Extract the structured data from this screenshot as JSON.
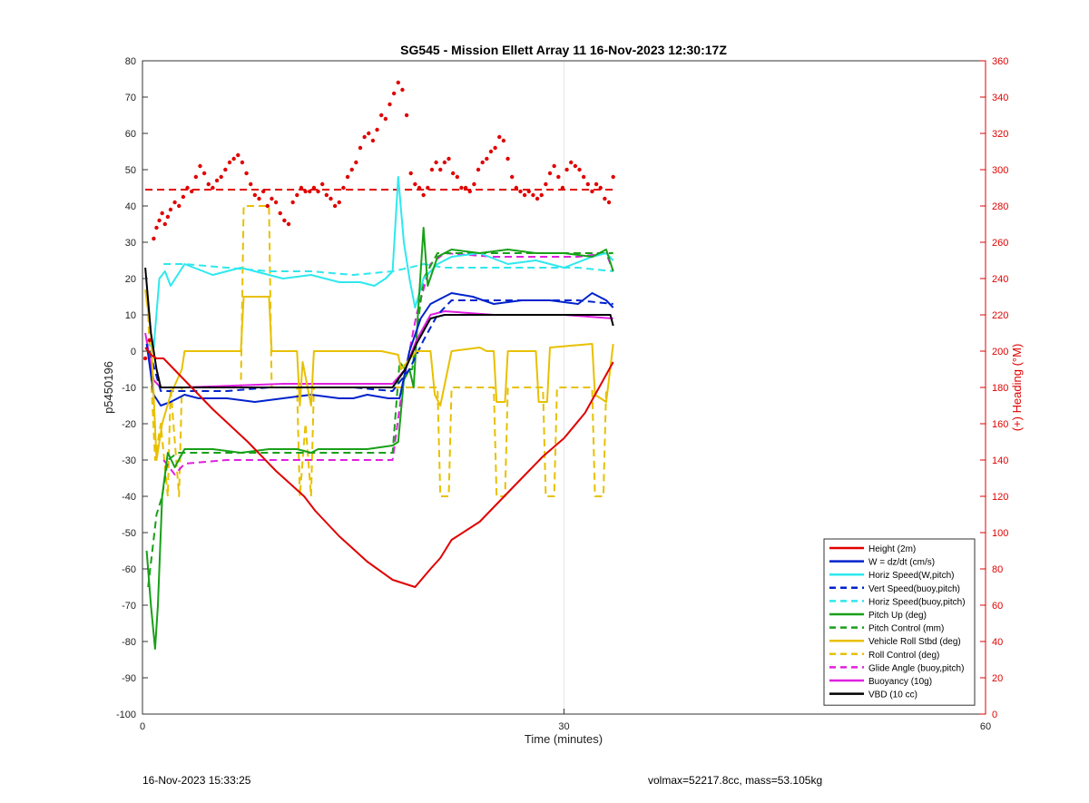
{
  "footer": {
    "left": "16-Nov-2023 15:33:25",
    "right": "volmax=52217.8cc, mass=53.105kg"
  },
  "chart_data": {
    "type": "line",
    "title": "SG545 - Mission Ellett Array 11 16-Nov-2023 12:30:17Z",
    "xlabel": "Time (minutes)",
    "ylabel": "p5450196",
    "y2label": "(+) Heading (°M)",
    "xlim": [
      0,
      60
    ],
    "ylim": [
      -100,
      80
    ],
    "y2lim": [
      0,
      360
    ],
    "xticks": [
      0,
      30,
      60
    ],
    "yticks": [
      -100,
      -90,
      -80,
      -70,
      -60,
      -50,
      -40,
      -30,
      -20,
      -10,
      0,
      10,
      20,
      30,
      40,
      50,
      60,
      70,
      80
    ],
    "y2ticks": [
      0,
      20,
      40,
      60,
      80,
      100,
      120,
      140,
      160,
      180,
      200,
      220,
      240,
      260,
      280,
      300,
      320,
      340,
      360
    ],
    "grid": "x-only at 30",
    "legend_position": "bottom-right",
    "colors": {
      "red": "#e00000",
      "blue": "#0022cc",
      "cyan": "#2ee8ee",
      "green": "#18a018",
      "yellow": "#e8c000",
      "magenta": "#e020e0",
      "black": "#000000"
    },
    "series": [
      {
        "name": "Height (2m)",
        "color": "#e00000",
        "style": "solid",
        "width": 2,
        "x": [
          0.2,
          0.6,
          1.0,
          1.5,
          3,
          5,
          7.5,
          9.5,
          11.5,
          12.3,
          14,
          16,
          17.8,
          19.4,
          20.5,
          21.2,
          22,
          24,
          25.5,
          27,
          28.5,
          30,
          31.5,
          32.5,
          33.5
        ],
        "y": [
          1,
          -1,
          -2,
          -2,
          -8,
          -16,
          -25,
          -33,
          -40,
          -44,
          -51,
          -58,
          -63,
          -65,
          -60,
          -57,
          -52,
          -47,
          -41,
          -35,
          -29,
          -24,
          -17,
          -10,
          -3
        ]
      },
      {
        "name": "W = dz/dt (cm/s)",
        "color": "#0022cc",
        "style": "solid",
        "width": 2,
        "x": [
          0.3,
          0.8,
          1.3,
          2,
          3,
          4,
          6,
          8,
          10,
          12,
          14,
          15,
          16,
          17.5,
          18.3,
          19,
          19.8,
          20.5,
          21,
          22,
          23.5,
          25,
          27,
          29,
          31,
          32,
          33,
          33.5
        ],
        "y": [
          2,
          -12,
          -15,
          -14,
          -12,
          -13,
          -13,
          -14,
          -13,
          -12,
          -13,
          -13,
          -12,
          -13,
          -13,
          0,
          9,
          13,
          14,
          16,
          15,
          13,
          14,
          14,
          13,
          16,
          14,
          12
        ]
      },
      {
        "name": "Horiz Speed(W,pitch)",
        "color": "#2ee8ee",
        "style": "solid",
        "width": 2,
        "x": [
          0.3,
          0.8,
          1.2,
          1.6,
          2,
          3,
          5,
          7,
          8,
          10,
          12,
          14,
          15.5,
          16.5,
          17.3,
          17.8,
          18.2,
          18.6,
          19,
          19.4,
          20,
          21,
          22,
          24,
          26,
          28,
          30,
          32,
          33,
          33.5
        ],
        "y": [
          2,
          1,
          20,
          22,
          18,
          24,
          21,
          23,
          22,
          20,
          21,
          19,
          19,
          18,
          20,
          22,
          48,
          30,
          20,
          12,
          20,
          24,
          26,
          27,
          24,
          25,
          23,
          26,
          27,
          25
        ]
      },
      {
        "name": "Vert Speed(buoy,pitch)",
        "color": "#0022cc",
        "style": "dashed",
        "width": 2,
        "x": [
          0.5,
          1.3,
          3,
          6,
          9,
          12,
          15,
          17.8,
          19,
          20,
          21,
          22,
          25,
          28,
          31,
          33.5
        ],
        "y": [
          0,
          -11,
          -11,
          -11,
          -10,
          -10,
          -10,
          -11,
          -5,
          3,
          10,
          14,
          14,
          14,
          14,
          13
        ]
      },
      {
        "name": "Horiz Speed(buoy,pitch)",
        "color": "#2ee8ee",
        "style": "dashed",
        "width": 2,
        "x": [
          1.5,
          3,
          6,
          9,
          12,
          15,
          17.8,
          19,
          20,
          21.5,
          25,
          28,
          31,
          33.5
        ],
        "y": [
          24,
          24,
          23,
          22,
          22,
          21,
          22,
          23,
          24,
          23,
          23,
          23,
          23,
          22
        ]
      },
      {
        "name": "Pitch Up (deg)",
        "color": "#18a018",
        "style": "solid",
        "width": 2,
        "x": [
          0.3,
          0.6,
          0.9,
          1.1,
          1.4,
          1.8,
          2.3,
          3,
          5,
          7,
          9,
          11,
          12,
          12.5,
          14,
          16,
          17.8,
          18.2,
          18.6,
          19,
          19.3,
          19.6,
          20,
          20.3,
          21,
          22,
          24,
          26,
          28,
          30,
          32,
          33,
          33.5
        ],
        "y": [
          -55,
          -70,
          -82,
          -70,
          -40,
          -28,
          -32,
          -27,
          -27,
          -28,
          -27,
          -27,
          -28,
          -27,
          -27,
          -27,
          -26,
          -25,
          -8,
          -5,
          -10,
          10,
          34,
          18,
          26,
          28,
          27,
          28,
          27,
          27,
          26,
          28,
          22
        ]
      },
      {
        "name": "Pitch Control (mm)",
        "color": "#18a018",
        "style": "dashed",
        "width": 2,
        "x": [
          0.4,
          1.0,
          1.4,
          1.8,
          2.5,
          5,
          10,
          15,
          17.8,
          18.3,
          18.7,
          19.2,
          20,
          21,
          25,
          30,
          33.5
        ],
        "y": [
          -65,
          -45,
          -40,
          -30,
          -28,
          -28,
          -28,
          -28,
          -28,
          -3,
          -5,
          -5,
          20,
          27,
          27,
          27,
          27
        ]
      },
      {
        "name": "Vehicle Roll Stbd (deg)",
        "color": "#e8c000",
        "style": "solid",
        "width": 2,
        "x": [
          0.2,
          0.6,
          1.0,
          1.4,
          2.0,
          2.8,
          3,
          7,
          7.2,
          9,
          9.2,
          11,
          11.2,
          11.4,
          12,
          12.2,
          17,
          18.2,
          18.4,
          19.5,
          20.5,
          20.8,
          21.2,
          22,
          24,
          24.5,
          25,
          25.2,
          25.8,
          26,
          28,
          28.2,
          28.8,
          29,
          32,
          32.2,
          33,
          33.5
        ],
        "y": [
          17,
          5,
          -30,
          -20,
          -12,
          -5,
          0,
          0,
          15,
          15,
          0,
          0,
          -15,
          -3,
          -15,
          0,
          0,
          -1,
          -5,
          0,
          0,
          -12,
          -15,
          0,
          1,
          0,
          0,
          -14,
          -14,
          0,
          0,
          -14,
          -14,
          1,
          2,
          -12,
          -14,
          2
        ]
      },
      {
        "name": "Roll Control (deg)",
        "color": "#e8c000",
        "style": "dashed",
        "width": 2,
        "x": [
          0.4,
          0.9,
          1.3,
          1.8,
          2.0,
          2.6,
          2.8,
          7,
          7.2,
          9,
          9.2,
          11,
          11.2,
          11.6,
          12,
          12.2,
          21,
          21.2,
          21.8,
          22,
          25,
          25.2,
          25.8,
          26,
          28.5,
          28.7,
          29.3,
          29.5,
          32,
          32.2,
          32.8,
          33
        ],
        "y": [
          10,
          -30,
          -20,
          -40,
          -10,
          -40,
          -10,
          -10,
          40,
          40,
          -10,
          -10,
          -40,
          -20,
          -40,
          -10,
          -10,
          -40,
          -40,
          -10,
          -10,
          -40,
          -40,
          -10,
          -10,
          -40,
          -40,
          -10,
          -10,
          -40,
          -40,
          -10
        ]
      },
      {
        "name": "Glide Angle (buoy,pitch)",
        "color": "#e020e0",
        "style": "dashed",
        "width": 2,
        "x": [
          1.5,
          2.3,
          3,
          6,
          9,
          12,
          15,
          17.8,
          18.5,
          19.5,
          20.5,
          21.5,
          25,
          28,
          31,
          33,
          33.5
        ],
        "y": [
          -30,
          -34,
          -31,
          -30,
          -30,
          -30,
          -30,
          -30,
          -10,
          10,
          24,
          27,
          26,
          26,
          26,
          27,
          22
        ]
      },
      {
        "name": "Buoyancy (10g)",
        "color": "#e020e0",
        "style": "solid",
        "width": 2,
        "x": [
          0.2,
          0.8,
          1.3,
          3,
          10,
          17.8,
          18.7,
          19.5,
          20.5,
          21.5,
          25,
          30,
          33.5
        ],
        "y": [
          5,
          -8,
          -10,
          -10,
          -9,
          -9,
          -5,
          3,
          10,
          11,
          10,
          10,
          9
        ]
      },
      {
        "name": "VBD (10 cc)",
        "color": "#000000",
        "style": "solid",
        "width": 2,
        "x": [
          0.2,
          0.6,
          1.0,
          1.3,
          3,
          10,
          17.8,
          18.7,
          19.5,
          20.5,
          21.5,
          25,
          30,
          33.3,
          33.5
        ],
        "y": [
          23,
          5,
          -5,
          -10,
          -10,
          -10,
          -10,
          -5,
          2,
          9,
          10,
          10,
          10,
          10,
          7
        ]
      },
      {
        "name": "",
        "axis": "right",
        "type": "line",
        "color": "#e00000",
        "style": "dashed",
        "width": 2,
        "x": [
          0.2,
          33.5
        ],
        "y": [
          289,
          289
        ]
      },
      {
        "name": "",
        "axis": "right",
        "type": "scatter",
        "color": "#e00000",
        "x": [
          0.2,
          0.5,
          0.8,
          1.0,
          1.2,
          1.4,
          1.6,
          1.8,
          2.0,
          2.3,
          2.6,
          2.9,
          3.2,
          3.5,
          3.8,
          4.1,
          4.4,
          4.7,
          5.0,
          5.3,
          5.6,
          5.9,
          6.2,
          6.5,
          6.8,
          7.1,
          7.4,
          7.7,
          8.0,
          8.3,
          8.6,
          8.9,
          9.2,
          9.5,
          9.8,
          10.1,
          10.4,
          10.7,
          11.0,
          11.3,
          11.6,
          11.9,
          12.2,
          12.5,
          12.8,
          13.1,
          13.4,
          13.7,
          14.0,
          14.3,
          14.6,
          14.9,
          15.2,
          15.5,
          15.8,
          16.1,
          16.4,
          16.7,
          17.0,
          17.3,
          17.6,
          17.9,
          18.2,
          18.5,
          18.8,
          19.1,
          19.4,
          19.7,
          20.0,
          20.3,
          20.6,
          20.9,
          21.2,
          21.5,
          21.8,
          22.1,
          22.4,
          22.7,
          23.0,
          23.3,
          23.6,
          23.9,
          24.2,
          24.5,
          24.8,
          25.1,
          25.4,
          25.7,
          26.0,
          26.3,
          26.6,
          26.9,
          27.2,
          27.5,
          27.8,
          28.1,
          28.4,
          28.7,
          29.0,
          29.3,
          29.6,
          29.9,
          30.2,
          30.5,
          30.8,
          31.1,
          31.4,
          31.7,
          32.0,
          32.3,
          32.6,
          32.9,
          33.2,
          33.5
        ],
        "y": [
          196,
          206,
          262,
          268,
          272,
          276,
          270,
          274,
          278,
          282,
          280,
          285,
          290,
          288,
          296,
          302,
          298,
          292,
          290,
          294,
          296,
          300,
          304,
          306,
          308,
          304,
          298,
          292,
          286,
          284,
          288,
          280,
          284,
          282,
          276,
          272,
          270,
          282,
          286,
          290,
          288,
          288,
          290,
          288,
          292,
          286,
          284,
          280,
          282,
          290,
          296,
          300,
          304,
          312,
          318,
          320,
          316,
          322,
          330,
          328,
          336,
          342,
          348,
          344,
          330,
          298,
          292,
          290,
          286,
          290,
          300,
          304,
          300,
          304,
          306,
          298,
          296,
          290,
          290,
          288,
          292,
          300,
          304,
          306,
          310,
          312,
          318,
          316,
          306,
          296,
          290,
          288,
          286,
          288,
          286,
          284,
          286,
          292,
          298,
          302,
          296,
          290,
          300,
          304,
          302,
          300,
          296,
          292,
          288,
          292,
          290,
          284,
          282,
          296
        ]
      },
      {
        "name": "",
        "type": "markers",
        "color": "#e00000",
        "x": [
          1.3,
          1.5,
          3.0,
          7.2,
          7.4,
          9.3,
          11.3,
          11.6,
          12.3,
          17.8,
          19.4,
          20.5,
          21.1,
          21.3,
          24.5,
          25.5,
          27.8,
          28.8,
          31.3,
          32.3,
          33.3
        ],
        "y": [
          -2,
          -3,
          -8,
          -25,
          -25,
          -32,
          -40,
          -40,
          -43,
          -63,
          -64,
          -60,
          -58,
          -57,
          -41,
          -39,
          -29,
          -24,
          -9,
          -5,
          -3
        ]
      }
    ]
  }
}
